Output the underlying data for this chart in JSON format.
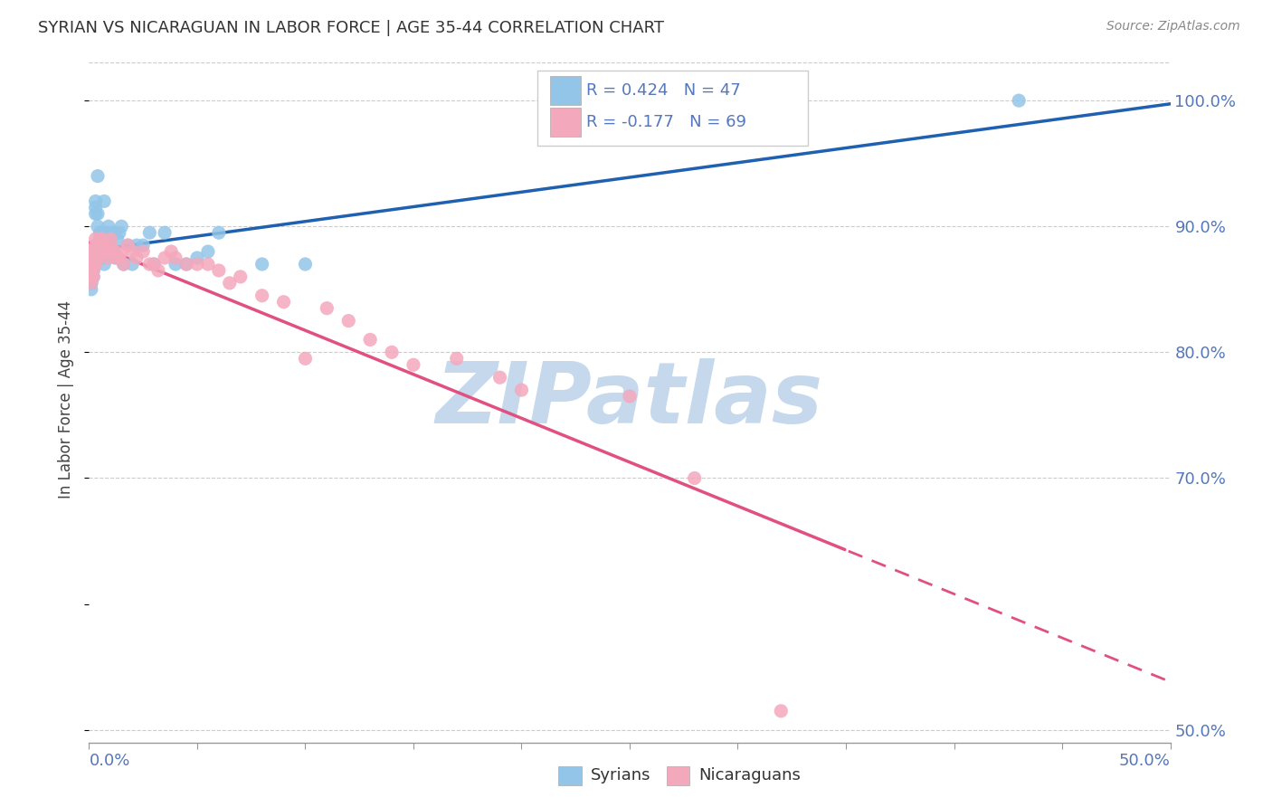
{
  "title": "SYRIAN VS NICARAGUAN IN LABOR FORCE | AGE 35-44 CORRELATION CHART",
  "source": "Source: ZipAtlas.com",
  "ylabel": "In Labor Force | Age 35-44",
  "xlim": [
    0.0,
    0.5
  ],
  "ylim": [
    0.49,
    1.035
  ],
  "yticks": [
    0.5,
    0.7,
    0.8,
    0.9,
    1.0
  ],
  "ytick_labels": [
    "50.0%",
    "70.0%",
    "80.0%",
    "90.0%",
    "100.0%"
  ],
  "xtick_left_label": "0.0%",
  "xtick_right_label": "50.0%",
  "legend_syrian": "R = 0.424   N = 47",
  "legend_nicaraguan": "R = -0.177   N = 69",
  "syrian_color": "#92C5E8",
  "nicaraguan_color": "#F4A8BC",
  "line_syrian_color": "#2060B0",
  "line_nicaraguan_color": "#E05080",
  "watermark": "ZIPatlas",
  "watermark_color": "#C5D8EC",
  "syrians_x": [
    0.001,
    0.001,
    0.001,
    0.001,
    0.001,
    0.002,
    0.002,
    0.002,
    0.002,
    0.003,
    0.003,
    0.003,
    0.003,
    0.004,
    0.004,
    0.004,
    0.005,
    0.005,
    0.006,
    0.006,
    0.007,
    0.007,
    0.008,
    0.009,
    0.01,
    0.01,
    0.011,
    0.012,
    0.013,
    0.014,
    0.015,
    0.016,
    0.018,
    0.02,
    0.022,
    0.025,
    0.028,
    0.03,
    0.035,
    0.04,
    0.045,
    0.05,
    0.055,
    0.06,
    0.08,
    0.1,
    0.43
  ],
  "syrians_y": [
    0.855,
    0.87,
    0.86,
    0.855,
    0.85,
    0.88,
    0.87,
    0.865,
    0.86,
    0.875,
    0.92,
    0.915,
    0.91,
    0.9,
    0.91,
    0.94,
    0.88,
    0.895,
    0.875,
    0.895,
    0.87,
    0.92,
    0.895,
    0.9,
    0.88,
    0.89,
    0.895,
    0.875,
    0.89,
    0.895,
    0.9,
    0.87,
    0.885,
    0.87,
    0.885,
    0.885,
    0.895,
    0.87,
    0.895,
    0.87,
    0.87,
    0.875,
    0.88,
    0.895,
    0.87,
    0.87,
    1.0
  ],
  "nicaraguans_x": [
    0.001,
    0.001,
    0.001,
    0.001,
    0.001,
    0.001,
    0.001,
    0.002,
    0.002,
    0.002,
    0.002,
    0.002,
    0.002,
    0.003,
    0.003,
    0.003,
    0.003,
    0.003,
    0.004,
    0.004,
    0.004,
    0.004,
    0.005,
    0.005,
    0.005,
    0.006,
    0.006,
    0.007,
    0.007,
    0.008,
    0.009,
    0.01,
    0.01,
    0.011,
    0.012,
    0.013,
    0.014,
    0.015,
    0.016,
    0.018,
    0.02,
    0.022,
    0.025,
    0.028,
    0.03,
    0.032,
    0.035,
    0.038,
    0.04,
    0.045,
    0.05,
    0.055,
    0.06,
    0.065,
    0.07,
    0.08,
    0.09,
    0.1,
    0.11,
    0.12,
    0.13,
    0.14,
    0.15,
    0.17,
    0.19,
    0.2,
    0.25,
    0.28,
    0.32
  ],
  "nicaraguans_y": [
    0.88,
    0.875,
    0.87,
    0.865,
    0.86,
    0.86,
    0.855,
    0.88,
    0.875,
    0.875,
    0.87,
    0.865,
    0.86,
    0.89,
    0.885,
    0.88,
    0.875,
    0.87,
    0.885,
    0.88,
    0.875,
    0.875,
    0.89,
    0.885,
    0.88,
    0.89,
    0.885,
    0.885,
    0.88,
    0.88,
    0.875,
    0.89,
    0.885,
    0.88,
    0.88,
    0.875,
    0.875,
    0.88,
    0.87,
    0.885,
    0.88,
    0.875,
    0.88,
    0.87,
    0.87,
    0.865,
    0.875,
    0.88,
    0.875,
    0.87,
    0.87,
    0.87,
    0.865,
    0.855,
    0.86,
    0.845,
    0.84,
    0.795,
    0.835,
    0.825,
    0.81,
    0.8,
    0.79,
    0.795,
    0.78,
    0.77,
    0.765,
    0.7,
    0.515
  ]
}
